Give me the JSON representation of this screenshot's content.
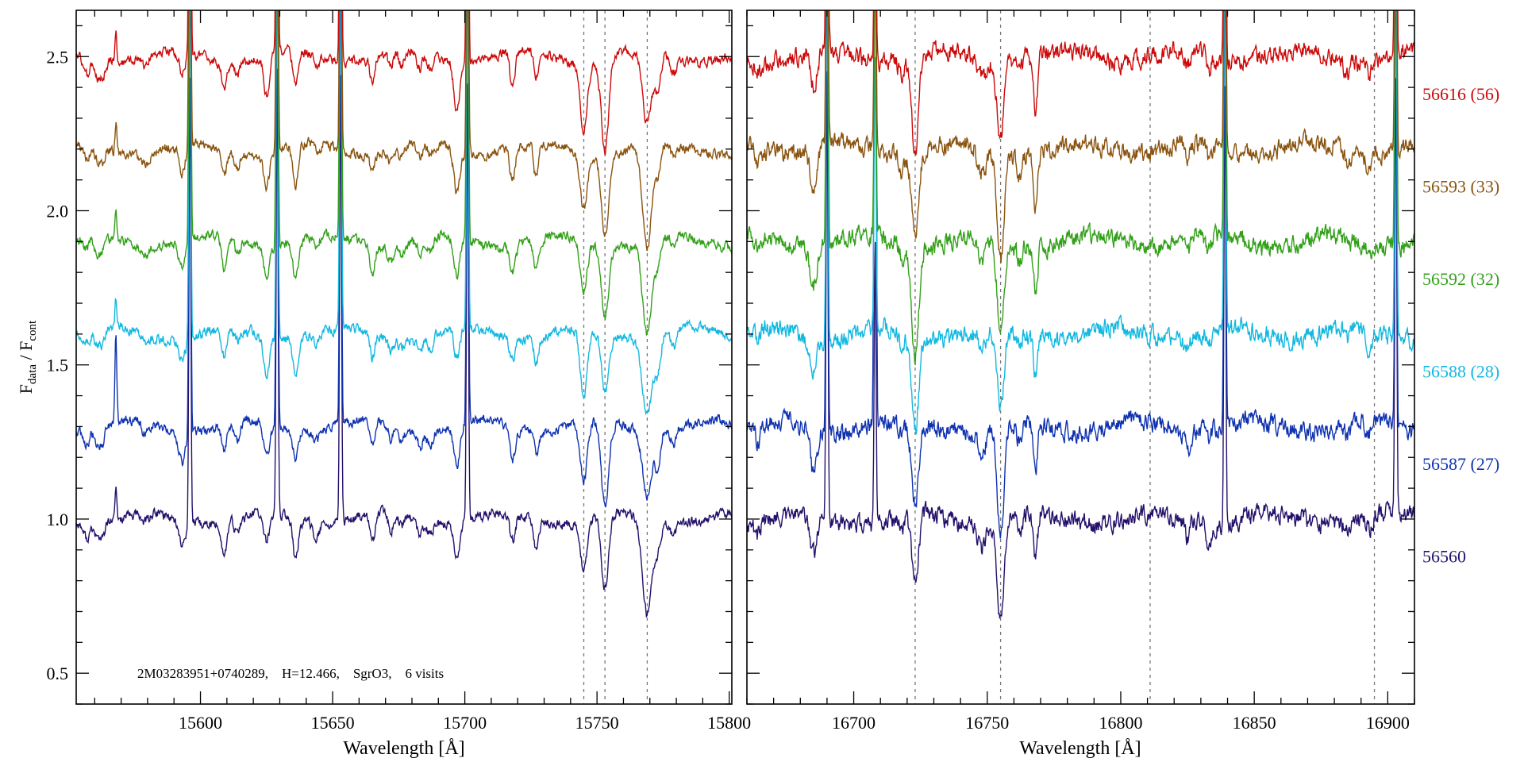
{
  "chart_data": {
    "type": "line",
    "ylabel_main": "F",
    "ylabel_sub1": "data",
    "ylabel_sep": " / F",
    "ylabel_sub2": "cont",
    "ylim": [
      0.4,
      2.65
    ],
    "yticks": [
      0.5,
      1.0,
      1.5,
      2.0,
      2.5
    ],
    "ytick_labels": [
      "0.5",
      "1.0",
      "1.5",
      "2.0",
      "2.5"
    ],
    "annotation": "2M03283951+0740289,    H=12.466,    SgrO3,    6 visits",
    "panels": [
      {
        "xlabel": "Wavelength [Å]",
        "xlim": [
          15553,
          15801
        ],
        "xticks": [
          15600,
          15650,
          15700,
          15750,
          15800
        ],
        "xtick_labels": [
          "15600",
          "15650",
          "15700",
          "15750",
          "15800"
        ],
        "dashed_lines": [
          15745,
          15753,
          15769
        ],
        "absorption_lines": [
          [
            15557,
            0.05,
            1.2
          ],
          [
            15561,
            0.06,
            1.0
          ],
          [
            15563,
            0.05,
            0.8
          ],
          [
            15579,
            0.03,
            1.5
          ],
          [
            15593,
            0.09,
            1.2
          ],
          [
            15609,
            0.1,
            1.0
          ],
          [
            15614,
            0.05,
            1.0
          ],
          [
            15625,
            0.13,
            1.1
          ],
          [
            15636,
            0.13,
            1.0
          ],
          [
            15644,
            0.04,
            1.0
          ],
          [
            15665,
            0.09,
            0.9
          ],
          [
            15672,
            0.05,
            1.0
          ],
          [
            15676,
            0.04,
            1.0
          ],
          [
            15683,
            0.05,
            1.0
          ],
          [
            15687,
            0.05,
            1.0
          ],
          [
            15697,
            0.14,
            1.1
          ],
          [
            15718,
            0.1,
            1.0
          ],
          [
            15727,
            0.1,
            0.9
          ],
          [
            15745,
            0.2,
            1.4
          ],
          [
            15753,
            0.27,
            1.4
          ],
          [
            15769,
            0.3,
            1.8
          ],
          [
            15773,
            0.1,
            1.0
          ],
          [
            15779,
            0.05,
            1.0
          ]
        ],
        "emission_spikes": [
          [
            15568,
            0.1
          ],
          [
            15596,
            1.6
          ],
          [
            15629,
            1.6
          ],
          [
            15653,
            1.6
          ],
          [
            15701,
            1.6
          ]
        ],
        "noise": 0.012
      },
      {
        "xlabel": "Wavelength [Å]",
        "xlim": [
          16660,
          16910
        ],
        "xticks": [
          16700,
          16750,
          16800,
          16850,
          16900
        ],
        "xtick_labels": [
          "16700",
          "16750",
          "16800",
          "16850",
          "16900"
        ],
        "dashed_lines": [
          16723,
          16755,
          16811,
          16895
        ],
        "absorption_lines": [
          [
            16664,
            0.04,
            1.0
          ],
          [
            16685,
            0.14,
            1.2
          ],
          [
            16718,
            0.05,
            1.0
          ],
          [
            16723,
            0.32,
            1.3
          ],
          [
            16748,
            0.08,
            1.5
          ],
          [
            16755,
            0.33,
            1.3
          ],
          [
            16762,
            0.06,
            1.0
          ],
          [
            16768,
            0.16,
            0.8
          ],
          [
            16825,
            0.06,
            0.8
          ],
          [
            16833,
            0.06,
            0.7
          ],
          [
            16885,
            0.04,
            1.0
          ],
          [
            16893,
            0.05,
            1.0
          ]
        ],
        "emission_spikes": [
          [
            16690,
            1.6
          ],
          [
            16708,
            0.9
          ],
          [
            16839,
            1.6
          ],
          [
            16903,
            1.6
          ]
        ],
        "noise": 0.022
      }
    ],
    "series": [
      {
        "name": "56560",
        "label": "56560",
        "offset": 1.0,
        "color": "#24106a",
        "seed": 11
      },
      {
        "name": "56587",
        "label": "56587 (27)",
        "offset": 1.3,
        "color": "#0f32b0",
        "seed": 23
      },
      {
        "name": "56588",
        "label": "56588 (28)",
        "offset": 1.6,
        "color": "#12b8e0",
        "seed": 37
      },
      {
        "name": "56592",
        "label": "56592 (32)",
        "offset": 1.9,
        "color": "#33a01a",
        "seed": 41
      },
      {
        "name": "56593",
        "label": "56593 (33)",
        "offset": 2.2,
        "color": "#8a5410",
        "seed": 53
      },
      {
        "name": "56616",
        "label": "56616 (56)",
        "offset": 2.5,
        "color": "#cc0a0a",
        "seed": 67
      }
    ]
  }
}
